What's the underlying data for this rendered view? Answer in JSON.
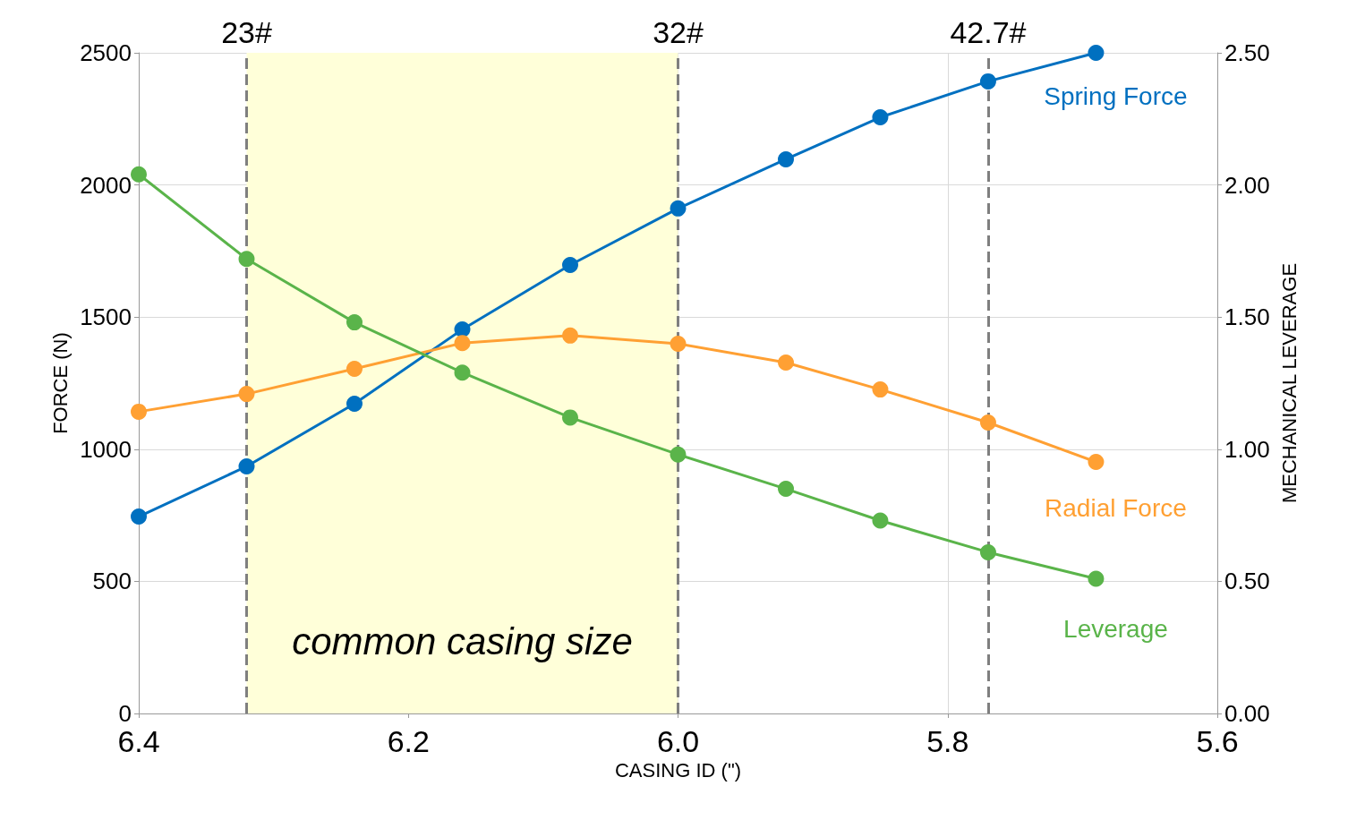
{
  "chart_data": {
    "type": "line",
    "xlabel": "CASING ID (\")",
    "ylabel": "FORCE (N)",
    "y2label": "MECHANICAL LEVERAGE",
    "x": [
      6.4,
      6.32,
      6.24,
      6.16,
      6.08,
      6.0,
      5.92,
      5.85,
      5.77,
      5.69
    ],
    "series": [
      {
        "name": "Spring Force",
        "color": "#0070c0",
        "values": [
          745,
          935,
          1172,
          1453,
          1697,
          1911,
          2097,
          2256,
          2392,
          2500
        ]
      },
      {
        "name": "Radial Force",
        "color": "#ffa033",
        "values": [
          1142,
          1209,
          1304,
          1402,
          1430,
          1399,
          1328,
          1226,
          1101,
          952
        ]
      },
      {
        "name": "Leverage",
        "color": "#5ab44a",
        "axis": "y2",
        "values": [
          2.04,
          1.72,
          1.48,
          1.29,
          1.12,
          0.98,
          0.85,
          0.73,
          0.61,
          0.51
        ]
      }
    ],
    "xlim": [
      6.4,
      5.6
    ],
    "xticks": [
      6.4,
      6.2,
      {
        "value": 6,
        "label": "6.0"
      },
      5.8,
      5.6
    ],
    "ylim": [
      0,
      2500
    ],
    "yticks": [
      0,
      500,
      1000,
      1500,
      2000,
      2500
    ],
    "y2lim": [
      0,
      2.5
    ],
    "y2ticks": [
      {
        "value": 0,
        "label": "0.00"
      },
      {
        "value": 0.5,
        "label": "0.50"
      },
      {
        "value": 1,
        "label": "1.00"
      },
      {
        "value": 1.5,
        "label": "1.50"
      },
      {
        "value": 2,
        "label": "2.00"
      },
      {
        "value": 2.5,
        "label": "2.50"
      }
    ],
    "ref_lines": [
      {
        "axis": "x",
        "value": 6.32,
        "color": "#7f7f7f",
        "line_style": "dashed"
      },
      {
        "axis": "x",
        "value": 6.0,
        "color": "#7f7f7f",
        "line_style": "dashed"
      },
      {
        "axis": "x",
        "value": 5.77,
        "color": "#7f7f7f",
        "line_style": "dashed"
      }
    ],
    "annotations": [
      {
        "text": "23#",
        "x": 6.32,
        "y": 2500
      },
      {
        "text": "32#",
        "x": 6.0,
        "y": 2500
      },
      {
        "text": "42.7#",
        "x": 5.77,
        "y": 2500
      }
    ],
    "bands": [
      {
        "axis": "x",
        "from": 6.32,
        "to": 6.0,
        "label": "common casing size",
        "color": "#ffffd9"
      }
    ],
    "grid": true,
    "legend": false,
    "marker": "circle",
    "line_style": "solid"
  }
}
